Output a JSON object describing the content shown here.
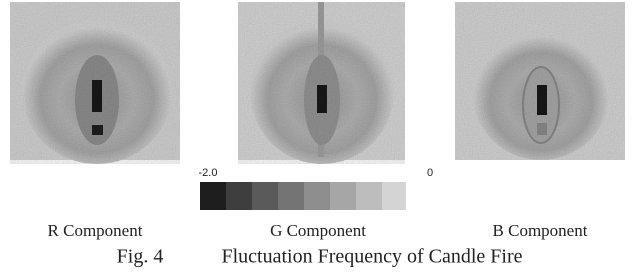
{
  "panels": [
    {
      "label": "R Component"
    },
    {
      "label": "G Component"
    },
    {
      "label": "B Component"
    }
  ],
  "colorbar": {
    "min_label": "-2.0",
    "max_label": "0"
  },
  "caption": {
    "figure": "Fig. 4",
    "title": "Fluctuation Frequency of Candle Fire"
  }
}
